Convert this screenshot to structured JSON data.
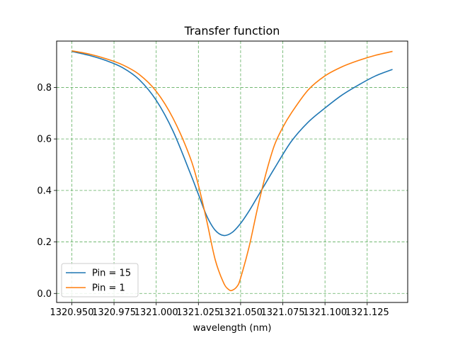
{
  "chart_data": {
    "type": "line",
    "title": "Transfer function",
    "xlabel": "wavelength (nm)",
    "ylabel": "",
    "xlim": [
      1320.941,
      1321.149
    ],
    "ylim": [
      -0.035,
      0.98
    ],
    "xticks": [
      1320.95,
      1320.975,
      1321.0,
      1321.025,
      1321.05,
      1321.075,
      1321.1,
      1321.125
    ],
    "xtick_labels": [
      "1320.950",
      "1320.975",
      "1321.000",
      "1321.025",
      "1321.050",
      "1321.075",
      "1321.100",
      "1321.125"
    ],
    "yticks": [
      0.0,
      0.2,
      0.4,
      0.6,
      0.8
    ],
    "ytick_labels": [
      "0.0",
      "0.2",
      "0.4",
      "0.6",
      "0.8"
    ],
    "grid": true,
    "grid_color": "#5fae5f",
    "legend_position": "lower left",
    "series": [
      {
        "name": "Pin = 15",
        "color": "#1f77b4",
        "x": [
          1320.95,
          1320.96,
          1320.97,
          1320.98,
          1320.99,
          1321.0,
          1321.01,
          1321.02,
          1321.025,
          1321.03,
          1321.035,
          1321.04,
          1321.045,
          1321.05,
          1321.055,
          1321.06,
          1321.065,
          1321.07,
          1321.08,
          1321.09,
          1321.1,
          1321.11,
          1321.12,
          1321.13,
          1321.14
        ],
        "y": [
          0.94,
          0.925,
          0.905,
          0.877,
          0.83,
          0.75,
          0.63,
          0.47,
          0.385,
          0.3,
          0.245,
          0.225,
          0.237,
          0.272,
          0.32,
          0.375,
          0.43,
          0.485,
          0.59,
          0.665,
          0.72,
          0.77,
          0.81,
          0.845,
          0.87
        ]
      },
      {
        "name": "Pin = 1",
        "color": "#ff7f0e",
        "x": [
          1320.95,
          1320.96,
          1320.97,
          1320.98,
          1320.99,
          1321.0,
          1321.01,
          1321.02,
          1321.025,
          1321.03,
          1321.035,
          1321.04,
          1321.043,
          1321.045,
          1321.048,
          1321.05,
          1321.055,
          1321.06,
          1321.065,
          1321.07,
          1321.075,
          1321.08,
          1321.09,
          1321.1,
          1321.11,
          1321.12,
          1321.13,
          1321.14
        ],
        "y": [
          0.942,
          0.93,
          0.912,
          0.888,
          0.85,
          0.785,
          0.68,
          0.53,
          0.42,
          0.28,
          0.13,
          0.04,
          0.015,
          0.012,
          0.028,
          0.06,
          0.18,
          0.33,
          0.465,
          0.575,
          0.645,
          0.7,
          0.79,
          0.845,
          0.88,
          0.905,
          0.925,
          0.94
        ]
      }
    ]
  }
}
